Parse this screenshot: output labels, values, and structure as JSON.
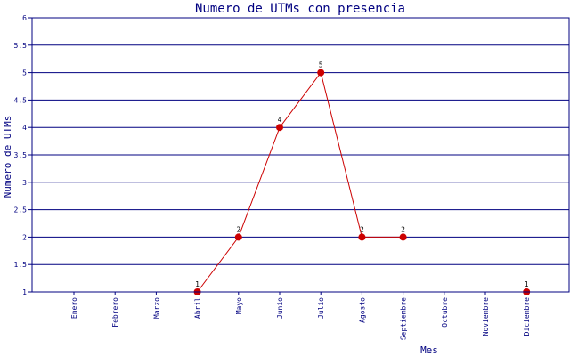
{
  "chart_data": {
    "type": "line",
    "title": "Numero de UTMs con presencia",
    "xlabel": "Mes",
    "ylabel": "Numero de UTMs",
    "categories": [
      "Enero",
      "Febrero",
      "Marzo",
      "Abril",
      "Mayo",
      "Junio",
      "Julio",
      "Agosto",
      "Septiembre",
      "Octubre",
      "Noviembre",
      "Diciembre"
    ],
    "points": [
      {
        "category": "Abril",
        "value": 1,
        "label": "1"
      },
      {
        "category": "Mayo",
        "value": 2,
        "label": "2"
      },
      {
        "category": "Junio",
        "value": 4,
        "label": "4"
      },
      {
        "category": "Julio",
        "value": 5,
        "label": "5"
      },
      {
        "category": "Agosto",
        "value": 2,
        "label": "2"
      },
      {
        "category": "Septiembre",
        "value": 2,
        "label": "2"
      },
      {
        "category": "Diciembre",
        "value": 1,
        "label": "1"
      }
    ],
    "line_segments": [
      [
        "Abril",
        "Mayo",
        "Junio",
        "Julio",
        "Agosto",
        "Septiembre"
      ]
    ],
    "ylim": [
      1,
      6
    ],
    "yticks": [
      "1",
      "1.5",
      "2",
      "2.5",
      "3",
      "3.5",
      "4",
      "4.5",
      "5",
      "5.5",
      "6"
    ],
    "grid": "horizontal",
    "colors": {
      "axis": "#000080",
      "line": "#cc0000",
      "marker": "#cc0000"
    }
  }
}
